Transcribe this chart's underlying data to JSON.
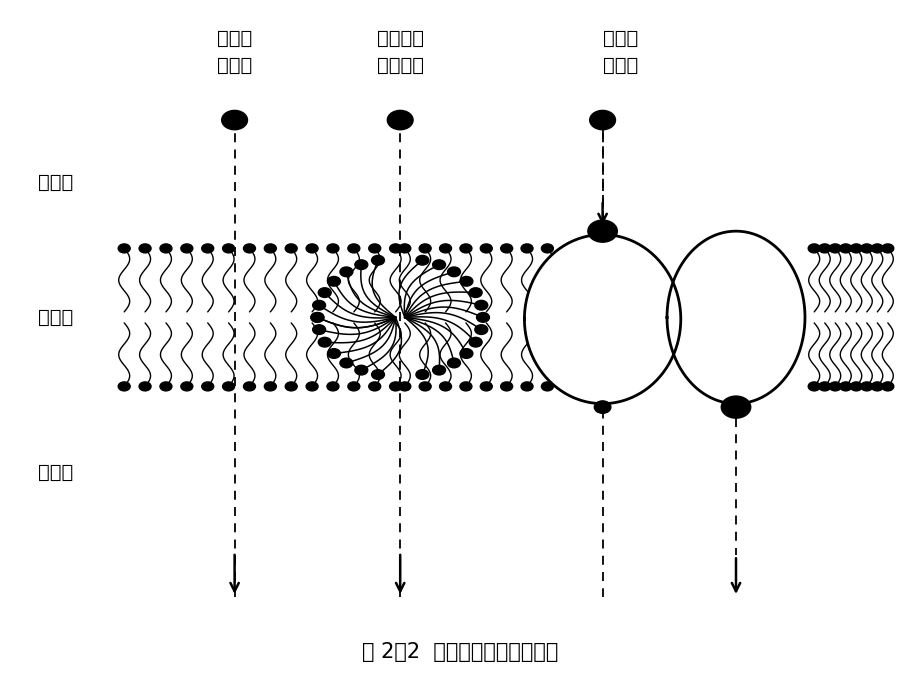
{
  "bg_color": "#ffffff",
  "line_color": "#000000",
  "title": "图 2－2  药物通过细胞膜的方式",
  "label_extracellular": "细胞外",
  "label_membrane": "细胞膜",
  "label_intracellular": "细胞内",
  "label1_line1": "通过脂",
  "label1_line2": "质扩散",
  "label2_line1": "通过水性",
  "label2_line2": "信道扩散",
  "label3_line1": "通过载",
  "label3_line2": "体转运",
  "figsize": [
    9.2,
    6.9
  ],
  "dpi": 100
}
